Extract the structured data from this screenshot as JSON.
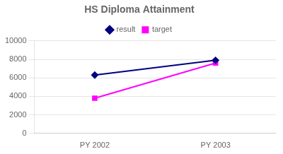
{
  "chart_data": {
    "type": "line",
    "title": "HS Diploma Attainment",
    "categories": [
      "PY 2002",
      "PY 2003"
    ],
    "series": [
      {
        "name": "result",
        "color": "#000080",
        "marker": "diamond",
        "values": [
          6300,
          7900
        ]
      },
      {
        "name": "target",
        "color": "#FF00FF",
        "marker": "square",
        "values": [
          3800,
          7600
        ]
      }
    ],
    "ylim": [
      0,
      10000
    ],
    "yticks": [
      0,
      2000,
      4000,
      6000,
      8000,
      10000
    ],
    "grid": true,
    "legend": "top"
  }
}
